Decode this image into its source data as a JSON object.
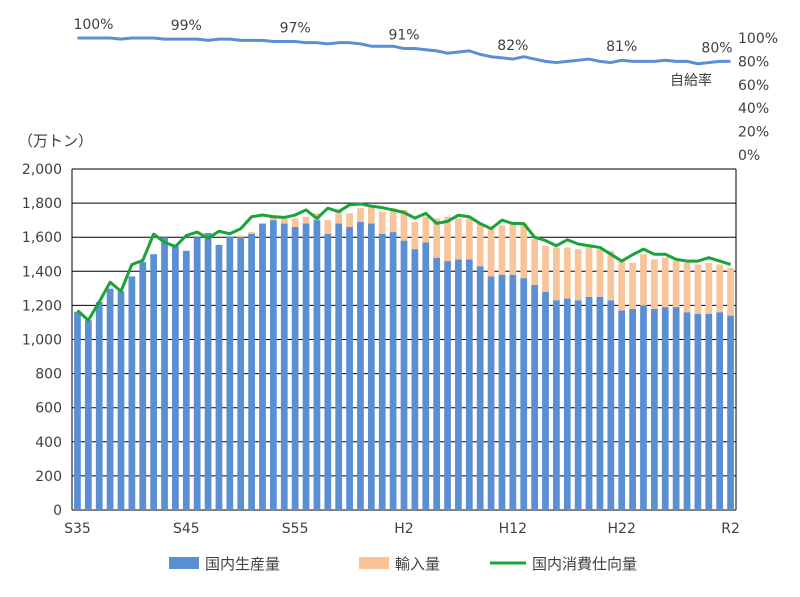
{
  "chart_data": [
    {
      "type": "line",
      "name_label": "自給率",
      "x": [
        "S35",
        "S36",
        "S37",
        "S38",
        "S39",
        "S40",
        "S41",
        "S42",
        "S43",
        "S44",
        "S45",
        "S46",
        "S47",
        "S48",
        "S49",
        "S50",
        "S51",
        "S52",
        "S53",
        "S54",
        "S55",
        "S56",
        "S57",
        "S58",
        "S59",
        "S60",
        "S61",
        "S62",
        "S63",
        "H1",
        "H2",
        "H3",
        "H4",
        "H5",
        "H6",
        "H7",
        "H8",
        "H9",
        "H10",
        "H11",
        "H12",
        "H13",
        "H14",
        "H15",
        "H16",
        "H17",
        "H18",
        "H19",
        "H20",
        "H21",
        "H22",
        "H23",
        "H24",
        "H25",
        "H26",
        "H27",
        "H28",
        "H29",
        "H30",
        "R1",
        "R2"
      ],
      "values": [
        100,
        100,
        100,
        100,
        99,
        100,
        100,
        100,
        99,
        99,
        99,
        99,
        98,
        99,
        99,
        98,
        98,
        98,
        97,
        97,
        97,
        96,
        96,
        95,
        96,
        96,
        95,
        93,
        93,
        93,
        91,
        91,
        90,
        89,
        87,
        88,
        89,
        86,
        84,
        83,
        82,
        84,
        82,
        80,
        79,
        80,
        81,
        82,
        80,
        79,
        81,
        80,
        80,
        80,
        81,
        80,
        80,
        78,
        79,
        80,
        80
      ],
      "annotations": [
        {
          "x": "S35",
          "label": "100%"
        },
        {
          "x": "S45",
          "label": "99%"
        },
        {
          "x": "S55",
          "label": "97%"
        },
        {
          "x": "H2",
          "label": "91%"
        },
        {
          "x": "H12",
          "label": "82%"
        },
        {
          "x": "H22",
          "label": "81%"
        },
        {
          "x": "R2",
          "label": "80%"
        }
      ],
      "y_ticks": [
        "0%",
        "20%",
        "40%",
        "60%",
        "80%",
        "100%"
      ],
      "ylim": [
        0,
        100
      ]
    },
    {
      "type": "bar",
      "stacked": true,
      "ylabel": "（万トン）",
      "ylim": [
        0,
        2000
      ],
      "y_ticks": [
        "0",
        "200",
        "400",
        "600",
        "800",
        "1,000",
        "1,200",
        "1,400",
        "1,600",
        "1,800",
        "2,000"
      ],
      "x_ticks": [
        "S35",
        "S45",
        "S55",
        "H2",
        "H12",
        "H22",
        "R2"
      ],
      "categories": [
        "S35",
        "S36",
        "S37",
        "S38",
        "S39",
        "S40",
        "S41",
        "S42",
        "S43",
        "S44",
        "S45",
        "S46",
        "S47",
        "S48",
        "S49",
        "S50",
        "S51",
        "S52",
        "S53",
        "S54",
        "S55",
        "S56",
        "S57",
        "S58",
        "S59",
        "S60",
        "S61",
        "S62",
        "S63",
        "H1",
        "H2",
        "H3",
        "H4",
        "H5",
        "H6",
        "H7",
        "H8",
        "H9",
        "H10",
        "H11",
        "H12",
        "H13",
        "H14",
        "H15",
        "H16",
        "H17",
        "H18",
        "H19",
        "H20",
        "H21",
        "H22",
        "H23",
        "H24",
        "H25",
        "H26",
        "H27",
        "H28",
        "H29",
        "H30",
        "R1",
        "R2"
      ],
      "series": [
        {
          "name": "国内生産量",
          "color": "#5b8fd4",
          "values": [
            1162,
            1113,
            1220,
            1298,
            1283,
            1370,
            1454,
            1500,
            1600,
            1550,
            1520,
            1600,
            1625,
            1555,
            1605,
            1600,
            1620,
            1680,
            1700,
            1680,
            1660,
            1680,
            1700,
            1620,
            1680,
            1660,
            1690,
            1680,
            1620,
            1630,
            1580,
            1530,
            1570,
            1480,
            1460,
            1470,
            1470,
            1430,
            1370,
            1380,
            1380,
            1360,
            1320,
            1280,
            1230,
            1240,
            1230,
            1250,
            1250,
            1230,
            1170,
            1180,
            1200,
            1180,
            1190,
            1190,
            1160,
            1150,
            1150,
            1160,
            1140
          ]
        },
        {
          "name": "輸入量",
          "color": "#f9c499",
          "values": [
            0,
            0,
            0,
            0,
            0,
            0,
            0,
            0,
            0,
            0,
            0,
            0,
            0,
            0,
            0,
            10,
            10,
            0,
            30,
            30,
            50,
            40,
            40,
            80,
            80,
            80,
            80,
            100,
            130,
            140,
            180,
            160,
            150,
            230,
            260,
            240,
            240,
            250,
            280,
            290,
            300,
            320,
            270,
            270,
            310,
            300,
            300,
            300,
            280,
            290,
            290,
            270,
            300,
            290,
            290,
            270,
            290,
            290,
            300,
            280,
            280
          ]
        },
        {
          "name": "国内消費仕向量",
          "color": "#19a33a",
          "type": "line",
          "values": [
            1170,
            1113,
            1220,
            1336,
            1283,
            1440,
            1464,
            1618,
            1570,
            1545,
            1610,
            1630,
            1593,
            1635,
            1620,
            1650,
            1720,
            1730,
            1720,
            1716,
            1730,
            1760,
            1710,
            1770,
            1750,
            1790,
            1795,
            1782,
            1773,
            1760,
            1745,
            1712,
            1740,
            1681,
            1693,
            1729,
            1720,
            1680,
            1650,
            1700,
            1680,
            1680,
            1600,
            1580,
            1550,
            1585,
            1560,
            1550,
            1540,
            1500,
            1460,
            1497,
            1530,
            1500,
            1500,
            1470,
            1460,
            1460,
            1480,
            1460,
            1440
          ]
        }
      ]
    }
  ]
}
